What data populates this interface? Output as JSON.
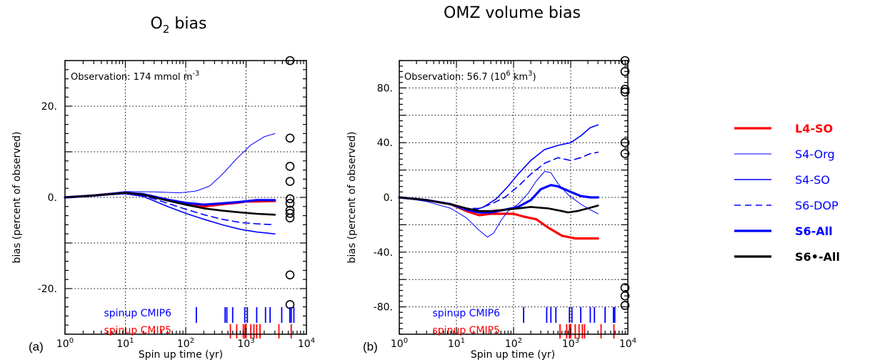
{
  "chart_data": [
    {
      "type": "line",
      "panel_label": "(a)",
      "title_main": "O",
      "title_sub": "2",
      "title_rest": " bias",
      "xlabel": "Spin up time (yr)",
      "ylabel": "bias (percent of observed)",
      "xscale": "log",
      "xlim": [
        1,
        10000
      ],
      "ylim": [
        -30,
        30
      ],
      "xticks": [
        {
          "base": "10",
          "exp": "0",
          "value": 1
        },
        {
          "base": "10",
          "exp": "1",
          "value": 10
        },
        {
          "base": "10",
          "exp": "2",
          "value": 100
        },
        {
          "base": "10",
          "exp": "3",
          "value": 1000
        },
        {
          "base": "10",
          "exp": "4",
          "value": 10000
        }
      ],
      "yticks": [
        {
          "label": "20.",
          "value": 20
        },
        {
          "label": "0.",
          "value": 0
        },
        {
          "label": "-20.",
          "value": -20
        }
      ],
      "ygrid": [
        20,
        10,
        0,
        -10,
        -20
      ],
      "observation": {
        "text": "Observation: 174 mmol m",
        "sup": "-3"
      },
      "series": [
        {
          "name": "L4-SO",
          "color": "#ff0000",
          "width": 3.2,
          "dash": "",
          "points": [
            [
              1,
              0
            ],
            [
              3,
              0.4
            ],
            [
              6,
              0.8
            ],
            [
              10,
              1.0
            ],
            [
              20,
              0.6
            ],
            [
              50,
              -0.6
            ],
            [
              100,
              -1.4
            ],
            [
              200,
              -2.0
            ],
            [
              400,
              -1.5
            ],
            [
              700,
              -1.2
            ],
            [
              1000,
              -0.9
            ],
            [
              1500,
              -0.9
            ],
            [
              3000,
              -0.8
            ]
          ]
        },
        {
          "name": "S4-Org",
          "color": "#0000ff",
          "width": 1,
          "dash": "",
          "points": [
            [
              1,
              0
            ],
            [
              3,
              0.5
            ],
            [
              10,
              1.3
            ],
            [
              30,
              1.2
            ],
            [
              80,
              1.0
            ],
            [
              150,
              1.4
            ],
            [
              250,
              2.5
            ],
            [
              400,
              5.0
            ],
            [
              700,
              8.5
            ],
            [
              1200,
              11.5
            ],
            [
              2000,
              13.3
            ],
            [
              3000,
              14.0
            ]
          ]
        },
        {
          "name": "S4-SO",
          "color": "#0000ff",
          "width": 1.6,
          "dash": "",
          "points": [
            [
              1,
              0
            ],
            [
              3,
              0.4
            ],
            [
              10,
              0.8
            ],
            [
              20,
              0.2
            ],
            [
              50,
              -2.0
            ],
            [
              100,
              -3.5
            ],
            [
              200,
              -4.8
            ],
            [
              400,
              -6.0
            ],
            [
              800,
              -7.0
            ],
            [
              1500,
              -7.6
            ],
            [
              3000,
              -8.0
            ]
          ]
        },
        {
          "name": "S6-DOP",
          "color": "#0000ff",
          "width": 1.6,
          "dash": "9,6",
          "points": [
            [
              1,
              0
            ],
            [
              3,
              0.4
            ],
            [
              10,
              0.9
            ],
            [
              20,
              0.4
            ],
            [
              50,
              -1.3
            ],
            [
              100,
              -2.6
            ],
            [
              200,
              -3.8
            ],
            [
              400,
              -4.8
            ],
            [
              800,
              -5.5
            ],
            [
              1500,
              -5.8
            ],
            [
              3000,
              -6.0
            ]
          ]
        },
        {
          "name": "S6-All",
          "color": "#0000ff",
          "width": 3.2,
          "dash": "",
          "points": [
            [
              1,
              0
            ],
            [
              3,
              0.4
            ],
            [
              10,
              1.0
            ],
            [
              20,
              0.7
            ],
            [
              50,
              -0.5
            ],
            [
              100,
              -1.2
            ],
            [
              200,
              -1.6
            ],
            [
              400,
              -1.3
            ],
            [
              800,
              -1.0
            ],
            [
              1500,
              -0.6
            ],
            [
              3000,
              -0.6
            ]
          ]
        },
        {
          "name": "S6•-All",
          "color": "#000000",
          "width": 2.6,
          "dash": "",
          "points": [
            [
              1,
              0
            ],
            [
              3,
              0.4
            ],
            [
              10,
              1.0
            ],
            [
              20,
              0.6
            ],
            [
              50,
              -0.7
            ],
            [
              100,
              -1.6
            ],
            [
              200,
              -2.4
            ],
            [
              400,
              -2.9
            ],
            [
              800,
              -3.3
            ],
            [
              1500,
              -3.6
            ],
            [
              3000,
              -3.8
            ]
          ]
        }
      ],
      "cmip_markers": [
        -0.3,
        3.5,
        6.8,
        13.0,
        30.0,
        -1.3,
        -2.8,
        -3.5,
        -4.5,
        -17.0,
        -23.5
      ],
      "spinup_cmip6": [
        150,
        450,
        480,
        600,
        950,
        1050,
        1500,
        2100,
        2500,
        3900,
        5300,
        5600,
        6200
      ],
      "spinup_cmip5": [
        550,
        700,
        900,
        960,
        1000,
        1200,
        1350,
        1500,
        1700,
        3500,
        5600
      ]
    },
    {
      "type": "line",
      "panel_label": "(b)",
      "title_main": "OMZ volume bias",
      "title_sub": "",
      "title_rest": "",
      "xlabel": "Spin up time (yr)",
      "ylabel": "bias (percent of observed)",
      "xscale": "log",
      "xlim": [
        1,
        10000
      ],
      "ylim": [
        -100,
        100
      ],
      "xticks": [
        {
          "base": "10",
          "exp": "0",
          "value": 1
        },
        {
          "base": "10",
          "exp": "1",
          "value": 10
        },
        {
          "base": "10",
          "exp": "2",
          "value": 100
        },
        {
          "base": "10",
          "exp": "3",
          "value": 1000
        },
        {
          "base": "10",
          "exp": "4",
          "value": 10000
        }
      ],
      "yticks": [
        {
          "label": "80.",
          "value": 80
        },
        {
          "label": "40.",
          "value": 40
        },
        {
          "label": "0.",
          "value": 0
        },
        {
          "label": "-40.",
          "value": -40
        },
        {
          "label": "-80.",
          "value": -80
        }
      ],
      "ygrid": [
        80,
        60,
        40,
        20,
        0,
        -20,
        -40,
        -60,
        -80
      ],
      "observation": {
        "text": "Observation: 56.7 (10",
        "sup": "6",
        "text2": " km",
        "sup2": "3",
        "text3": ")"
      },
      "series": [
        {
          "name": "L4-SO",
          "color": "#ff0000",
          "width": 3.2,
          "dash": "",
          "points": [
            [
              1,
              0
            ],
            [
              3,
              -2
            ],
            [
              8,
              -5
            ],
            [
              15,
              -10
            ],
            [
              25,
              -13
            ],
            [
              40,
              -12
            ],
            [
              60,
              -12
            ],
            [
              100,
              -12
            ],
            [
              150,
              -14
            ],
            [
              250,
              -16
            ],
            [
              400,
              -22
            ],
            [
              700,
              -28
            ],
            [
              1200,
              -30
            ],
            [
              3000,
              -30
            ]
          ]
        },
        {
          "name": "S4-Org",
          "color": "#0000ff",
          "width": 1,
          "dash": "",
          "points": [
            [
              1,
              0
            ],
            [
              3,
              -3
            ],
            [
              8,
              -8
            ],
            [
              15,
              -15
            ],
            [
              25,
              -24
            ],
            [
              35,
              -29
            ],
            [
              45,
              -26
            ],
            [
              60,
              -17
            ],
            [
              80,
              -10
            ],
            [
              120,
              -5
            ],
            [
              180,
              3
            ],
            [
              250,
              12
            ],
            [
              350,
              19
            ],
            [
              450,
              18
            ],
            [
              600,
              10
            ],
            [
              900,
              2
            ],
            [
              1500,
              -5
            ],
            [
              2200,
              -9
            ],
            [
              3000,
              -12
            ]
          ]
        },
        {
          "name": "S4-SO",
          "color": "#0000ff",
          "width": 1.6,
          "dash": "",
          "points": [
            [
              1,
              0
            ],
            [
              3,
              -2
            ],
            [
              8,
              -5
            ],
            [
              15,
              -8
            ],
            [
              22,
              -9
            ],
            [
              30,
              -7
            ],
            [
              50,
              -1
            ],
            [
              80,
              8
            ],
            [
              120,
              17
            ],
            [
              200,
              27
            ],
            [
              350,
              35
            ],
            [
              600,
              38
            ],
            [
              1000,
              40
            ],
            [
              1500,
              45
            ],
            [
              2200,
              51
            ],
            [
              3000,
              53
            ]
          ]
        },
        {
          "name": "S6-DOP",
          "color": "#0000ff",
          "width": 1.6,
          "dash": "9,6",
          "points": [
            [
              1,
              0
            ],
            [
              3,
              -2
            ],
            [
              8,
              -5
            ],
            [
              15,
              -8
            ],
            [
              25,
              -8
            ],
            [
              40,
              -5
            ],
            [
              70,
              0
            ],
            [
              120,
              8
            ],
            [
              200,
              17
            ],
            [
              350,
              25
            ],
            [
              600,
              29
            ],
            [
              1000,
              27
            ],
            [
              1500,
              29
            ],
            [
              2200,
              32
            ],
            [
              3000,
              33
            ]
          ]
        },
        {
          "name": "S6-All",
          "color": "#0000ff",
          "width": 3.2,
          "dash": "",
          "points": [
            [
              1,
              0
            ],
            [
              3,
              -2
            ],
            [
              8,
              -5
            ],
            [
              15,
              -9
            ],
            [
              25,
              -11
            ],
            [
              40,
              -11
            ],
            [
              70,
              -9
            ],
            [
              120,
              -7
            ],
            [
              200,
              -2
            ],
            [
              300,
              6
            ],
            [
              450,
              9
            ],
            [
              600,
              8
            ],
            [
              1000,
              4
            ],
            [
              1500,
              1
            ],
            [
              2200,
              0
            ],
            [
              3000,
              0
            ]
          ]
        },
        {
          "name": "S6•-All",
          "color": "#000000",
          "width": 2.6,
          "dash": "",
          "points": [
            [
              1,
              0
            ],
            [
              3,
              -2
            ],
            [
              8,
              -5
            ],
            [
              15,
              -8
            ],
            [
              25,
              -10
            ],
            [
              40,
              -10
            ],
            [
              70,
              -9
            ],
            [
              120,
              -8
            ],
            [
              200,
              -7
            ],
            [
              400,
              -8
            ],
            [
              700,
              -10
            ],
            [
              900,
              -11
            ],
            [
              1300,
              -10
            ],
            [
              2000,
              -8
            ],
            [
              3000,
              -6
            ]
          ]
        }
      ],
      "cmip_markers": [
        100,
        92,
        79,
        77,
        40,
        32,
        -66,
        -72,
        -79
      ],
      "spinup_cmip6": [
        150,
        380,
        450,
        550,
        950,
        1050,
        1500,
        2200,
        2600,
        4000,
        5600,
        5900
      ],
      "spinup_cmip5": [
        650,
        850,
        950,
        1000,
        1200,
        1400,
        1600,
        1750,
        3400,
        5700
      ]
    }
  ],
  "legend": [
    {
      "name": "L4-SO",
      "color": "#ff0000",
      "width": 3.2,
      "dash": "",
      "bold": true
    },
    {
      "name": "S4-Org",
      "color": "#0000ff",
      "width": 1,
      "dash": "",
      "bold": false
    },
    {
      "name": "S4-SO",
      "color": "#0000ff",
      "width": 1.6,
      "dash": "",
      "bold": false
    },
    {
      "name": "S6-DOP",
      "color": "#0000ff",
      "width": 1.6,
      "dash": "9,6",
      "bold": false
    },
    {
      "name": "S6-All",
      "color": "#0000ff",
      "width": 3.2,
      "dash": "",
      "bold": true
    },
    {
      "name": "S6•-All",
      "color": "#000000",
      "width": 3.2,
      "dash": "",
      "bold": true
    }
  ],
  "spinup_labels": {
    "cmip6": "spinup CMIP6",
    "cmip5": "spinup CMIP5",
    "cmip6_color": "#0000ff",
    "cmip5_color": "#ff0000"
  }
}
